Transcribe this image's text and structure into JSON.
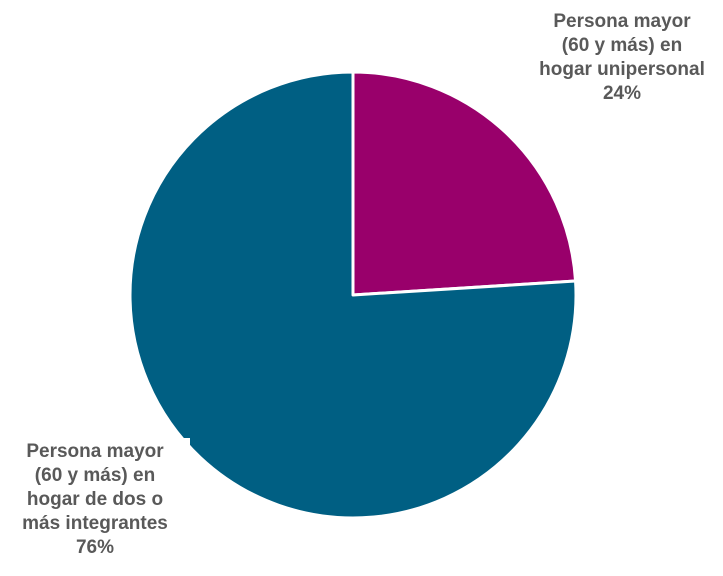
{
  "chart_data": {
    "type": "pie",
    "slices": [
      {
        "label_lines": [
          "Persona mayor",
          "(60 y más) en",
          "hogar unipersonal"
        ],
        "value": 24,
        "value_label": "24%",
        "color": "#99006b"
      },
      {
        "label_lines": [
          "Persona mayor",
          "(60 y más) en",
          "hogar de dos o",
          "más integrantes"
        ],
        "value": 76,
        "value_label": "76%",
        "color": "#005f83"
      }
    ],
    "start_angle_deg": 0,
    "direction": "clockwise",
    "legend": "none",
    "slice_border_color": "#ffffff"
  }
}
